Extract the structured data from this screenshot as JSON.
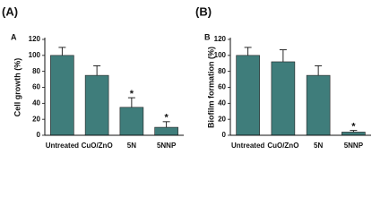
{
  "chart_data": [
    {
      "type": "bar",
      "panel_label": "(A)",
      "inner_label": "A",
      "ylabel": "Cell growth (%)",
      "categories": [
        "Untreated",
        "CuO/ZnO",
        "5N",
        "5NNP"
      ],
      "values": [
        100,
        75,
        35,
        10
      ],
      "errors": [
        10,
        12,
        12,
        7
      ],
      "significance": [
        null,
        null,
        "*",
        "*"
      ],
      "color": "#3f7d7b",
      "ylim": [
        0,
        120
      ],
      "yticks": [
        0,
        20,
        40,
        60,
        80,
        100,
        120
      ]
    },
    {
      "type": "bar",
      "panel_label": "(B)",
      "inner_label": "B",
      "ylabel": "Biofilm formation (%)",
      "categories": [
        "Untreated",
        "CuO/ZnO",
        "5N",
        "5NNP"
      ],
      "values": [
        100,
        92,
        75,
        4
      ],
      "errors": [
        10,
        15,
        12,
        2
      ],
      "significance": [
        null,
        null,
        null,
        "*"
      ],
      "color": "#3f7d7b",
      "ylim": [
        0,
        120
      ],
      "yticks": [
        0,
        20,
        40,
        60,
        80,
        100,
        120
      ]
    }
  ]
}
